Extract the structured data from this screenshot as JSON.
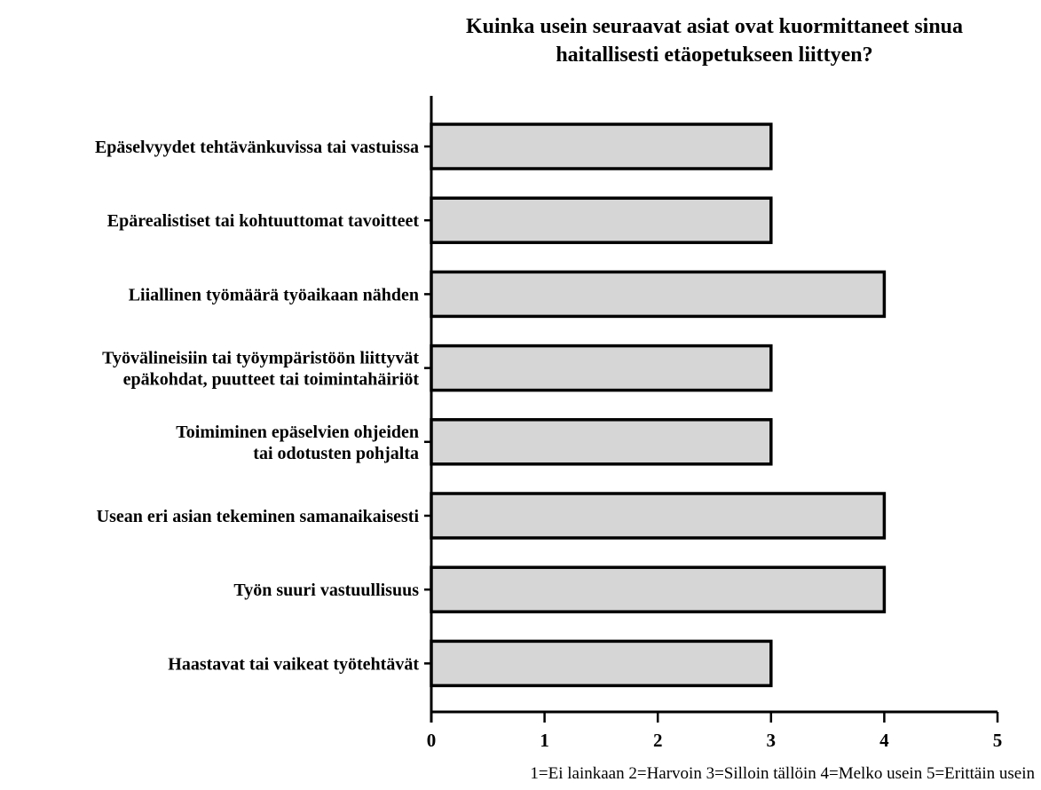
{
  "chart_data": {
    "type": "bar",
    "orientation": "horizontal",
    "title_lines": [
      "Kuinka usein seuraavat asiat ovat kuormittaneet sinua",
      "haitallisesti etäopetukseen liittyen?"
    ],
    "categories": [
      [
        "Epäselvyydet tehtävänkuvissa tai vastuissa"
      ],
      [
        "Epärealistiset tai kohtuuttomat tavoitteet"
      ],
      [
        "Liiallinen työmäärä työaikaan nähden"
      ],
      [
        "Työvälineisiin tai työympäristöön liittyvät",
        "epäkohdat, puutteet tai toimintahäiriöt"
      ],
      [
        "Toimiminen epäselvien ohjeiden",
        "tai odotusten pohjalta"
      ],
      [
        "Usean eri asian tekeminen samanaikaisesti"
      ],
      [
        "Työn suuri vastuullisuus"
      ],
      [
        "Haastavat tai vaikeat työtehtävät"
      ]
    ],
    "values": [
      3,
      3,
      4,
      3,
      3,
      4,
      4,
      3
    ],
    "xlim": [
      0,
      5
    ],
    "xticks": [
      "0",
      "1",
      "2",
      "3",
      "4",
      "5"
    ],
    "xlabel": "1=Ei lainkaan 2=Harvoin 3=Silloin tällöin 4=Melko usein 5=Erittäin usein",
    "ylabel": "",
    "bar_color": "#d6d6d6",
    "grid": false,
    "legend": "none"
  }
}
